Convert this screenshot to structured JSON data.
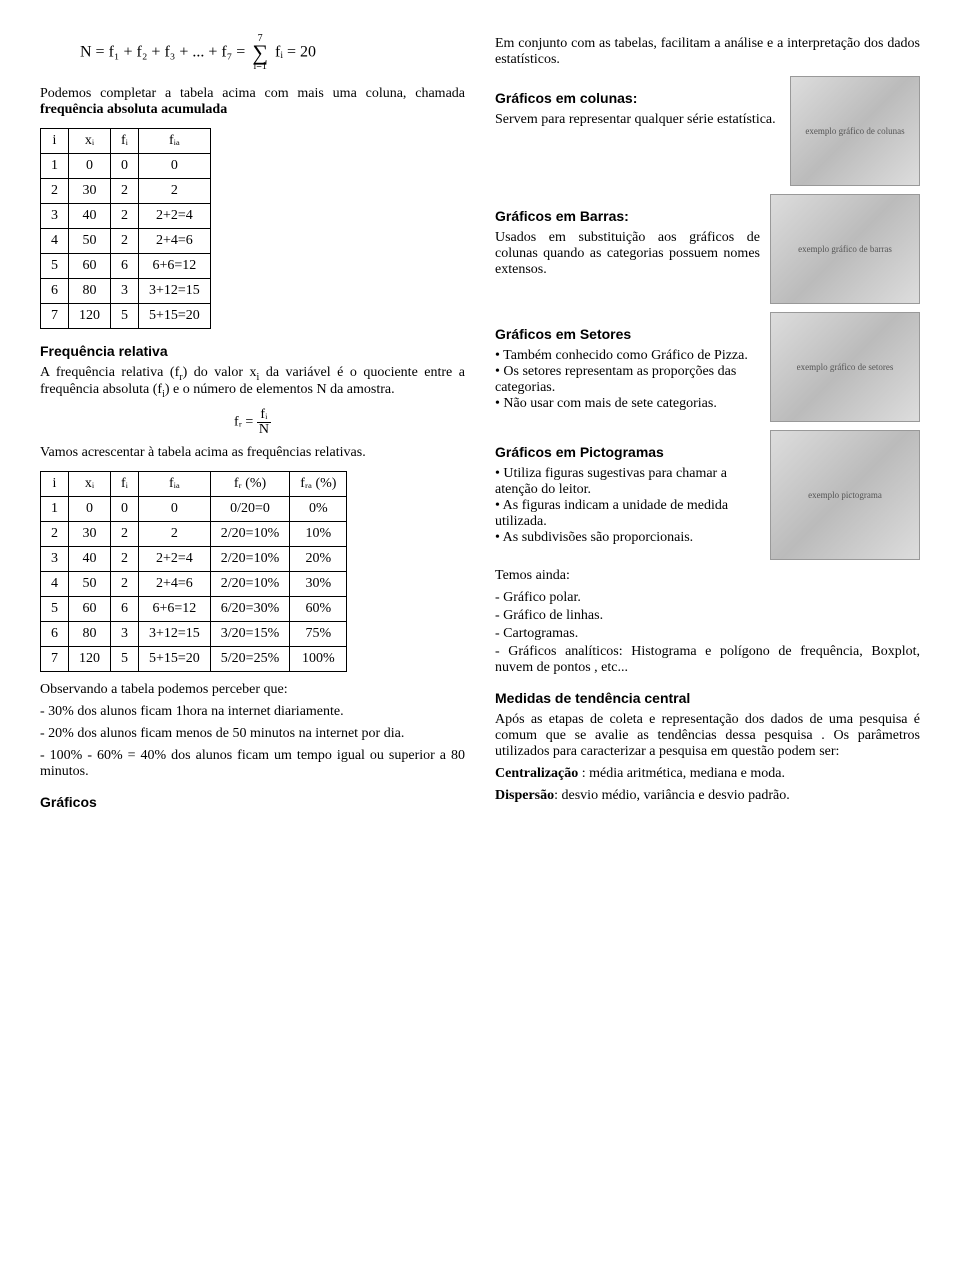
{
  "left": {
    "formula_main": "N = f₁ + f₂ + f₃ + ... + f₇ =",
    "sigma_top": "7",
    "sigma_bot": "i=1",
    "sigma_term": "fᵢ = 20",
    "intro_p": "Podemos completar a tabela acima com mais uma coluna, chamada ",
    "intro_bold": "frequência absoluta acumulada",
    "table1": {
      "headers": [
        "i",
        "xᵢ",
        "fᵢ",
        "fᵢₐ"
      ],
      "rows": [
        [
          "1",
          "0",
          "0",
          "0"
        ],
        [
          "2",
          "30",
          "2",
          "2"
        ],
        [
          "3",
          "40",
          "2",
          "2+2=4"
        ],
        [
          "4",
          "50",
          "2",
          "2+4=6"
        ],
        [
          "5",
          "60",
          "6",
          "6+6=12"
        ],
        [
          "6",
          "80",
          "3",
          "3+12=15"
        ],
        [
          "7",
          "120",
          "5",
          "5+15=20"
        ]
      ]
    },
    "freq_rel_title": "Frequência relativa",
    "freq_rel_p1a": "A frequência relativa (f",
    "freq_rel_p1b": ") do valor x",
    "freq_rel_p1c": " da variável é o quociente entre a frequência absoluta (f",
    "freq_rel_p1d": ") e o número de elementos N da amostra.",
    "fr_formula_left": "fᵣ =",
    "fr_formula_top": "fᵢ",
    "fr_formula_bot": "N",
    "freq_rel_p2": "Vamos acrescentar à tabela acima as frequências relativas.",
    "table2": {
      "headers": [
        "i",
        "xᵢ",
        "fᵢ",
        "fᵢₐ",
        "fᵣ (%)",
        "fᵣₐ (%)"
      ],
      "rows": [
        [
          "1",
          "0",
          "0",
          "0",
          "0/20=0",
          "0%"
        ],
        [
          "2",
          "30",
          "2",
          "2",
          "2/20=10%",
          "10%"
        ],
        [
          "3",
          "40",
          "2",
          "2+2=4",
          "2/20=10%",
          "20%"
        ],
        [
          "4",
          "50",
          "2",
          "2+4=6",
          "2/20=10%",
          "30%"
        ],
        [
          "5",
          "60",
          "6",
          "6+6=12",
          "6/20=30%",
          "60%"
        ],
        [
          "6",
          "80",
          "3",
          "3+12=15",
          "3/20=15%",
          "75%"
        ],
        [
          "7",
          "120",
          "5",
          "5+15=20",
          "5/20=25%",
          "100%"
        ]
      ]
    },
    "obs_p": "Observando a tabela podemos perceber que:",
    "obs_items": [
      "- 30% dos alunos ficam 1hora na internet diariamente.",
      "- 20% dos alunos ficam menos de 50 minutos na internet por dia.",
      "- 100% - 60% = 40% dos alunos ficam um tempo igual ou superior a 80 minutos."
    ],
    "graficos_title": "Gráficos"
  },
  "right": {
    "intro": "Em conjunto com as tabelas, facilitam a análise e a interpretação dos dados estatísticos.",
    "colunas_title": "Gráficos em colunas:",
    "colunas_txt": "Servem  para representar qualquer série estatística.",
    "barras_title": "Gráficos em Barras:",
    "barras_txt": "Usados em substituição aos gráficos de colunas quando as categorias possuem nomes extensos.",
    "setores_title": "Gráficos em Setores",
    "setores_items": [
      "Também conhecido como Gráfico de Pizza.",
      "Os setores representam as proporções das categorias.",
      "Não usar com mais de sete categorias."
    ],
    "picto_title": "Gráficos em Pictogramas",
    "picto_items": [
      "Utiliza figuras sugestivas para chamar a atenção do leitor.",
      "As figuras indicam a unidade de medida utilizada.",
      "As subdivisões são proporcionais."
    ],
    "temos_ainda": "Temos ainda:",
    "temos_items": [
      "- Gráfico polar.",
      "- Gráfico de linhas.",
      "- Cartogramas.",
      "- Gráficos analíticos: Histograma e polígono de frequência, Boxplot, nuvem de pontos , etc..."
    ],
    "medidas_title": "Medidas de tendência central",
    "medidas_p": "Após as etapas de coleta e representação dos dados de uma pesquisa é comum que se avalie as tendências dessa pesquisa . Os parâmetros utilizados para caracterizar a pesquisa em questão podem ser:",
    "central_bold": "Centralização",
    "central_rest": " : média aritmética, mediana e moda.",
    "disp_bold": "Dispersão",
    "disp_rest": ": desvio médio, variância e desvio padrão.",
    "img_placeholders": {
      "colunas": "exemplo gráfico de colunas",
      "barras": "exemplo gráfico de barras",
      "setores": "exemplo gráfico de setores",
      "picto": "exemplo pictograma"
    }
  }
}
